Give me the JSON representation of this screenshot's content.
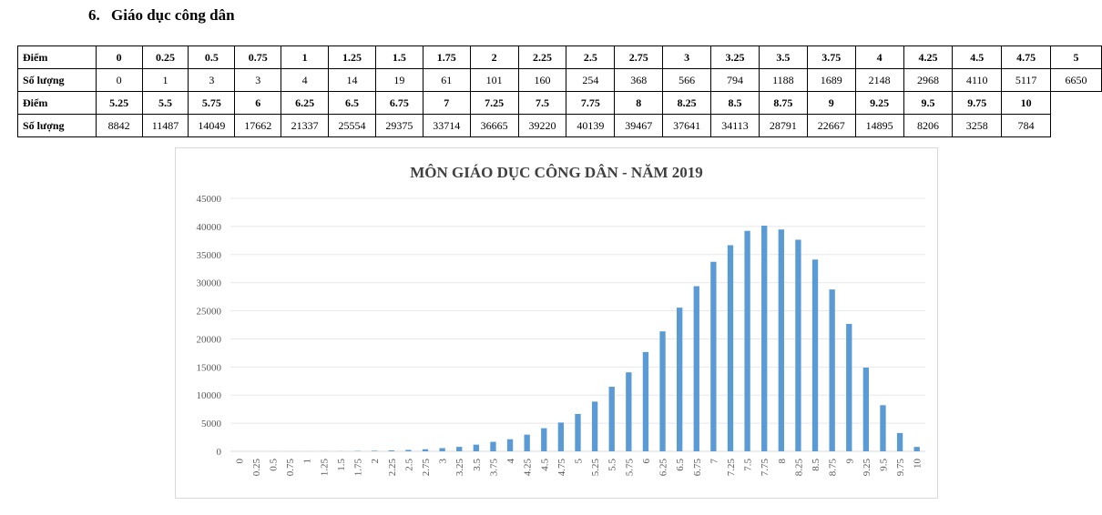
{
  "section": {
    "number": "6.",
    "title": "Giáo dục công dân"
  },
  "table": {
    "score_label": "Điểm",
    "count_label": "Số lượng",
    "rows": [
      {
        "scores": [
          "0",
          "0.25",
          "0.5",
          "0.75",
          "1",
          "1.25",
          "1.5",
          "1.75",
          "2",
          "2.25",
          "2.5",
          "2.75",
          "3",
          "3.25",
          "3.5",
          "3.75",
          "4",
          "4.25",
          "4.5",
          "4.75",
          "5"
        ],
        "counts": [
          "0",
          "1",
          "3",
          "3",
          "4",
          "14",
          "19",
          "61",
          "101",
          "160",
          "254",
          "368",
          "566",
          "794",
          "1188",
          "1689",
          "2148",
          "2968",
          "4110",
          "5117",
          "6650"
        ]
      },
      {
        "scores": [
          "5.25",
          "5.5",
          "5.75",
          "6",
          "6.25",
          "6.5",
          "6.75",
          "7",
          "7.25",
          "7.5",
          "7.75",
          "8",
          "8.25",
          "8.5",
          "8.75",
          "9",
          "9.25",
          "9.5",
          "9.75",
          "10"
        ],
        "counts": [
          "8842",
          "11487",
          "14049",
          "17662",
          "21337",
          "25554",
          "29375",
          "33714",
          "36665",
          "39220",
          "40139",
          "39467",
          "37641",
          "34113",
          "28791",
          "22667",
          "14895",
          "8206",
          "3258",
          "784"
        ]
      }
    ]
  },
  "chart_data": {
    "type": "bar",
    "title": "MÔN GIÁO DỤC CÔNG DÂN - NĂM 2019",
    "xlabel": "",
    "ylabel": "",
    "ylim": [
      0,
      45000
    ],
    "yticks": [
      0,
      5000,
      10000,
      15000,
      20000,
      25000,
      30000,
      35000,
      40000,
      45000
    ],
    "grid": true,
    "bar_color": "#5b9bd5",
    "categories": [
      "0",
      "0.25",
      "0.5",
      "0.75",
      "1",
      "1.25",
      "1.5",
      "1.75",
      "2",
      "2.25",
      "2.5",
      "2.75",
      "3",
      "3.25",
      "3.5",
      "3.75",
      "4",
      "4.25",
      "4.5",
      "4.75",
      "5",
      "5.25",
      "5.5",
      "5.75",
      "6",
      "6.25",
      "6.5",
      "6.75",
      "7",
      "7.25",
      "7.5",
      "7.75",
      "8",
      "8.25",
      "8.5",
      "8.75",
      "9",
      "9.25",
      "9.5",
      "9.75",
      "10"
    ],
    "values": [
      0,
      1,
      3,
      3,
      4,
      14,
      19,
      61,
      101,
      160,
      254,
      368,
      566,
      794,
      1188,
      1689,
      2148,
      2968,
      4110,
      5117,
      6650,
      8842,
      11487,
      14049,
      17662,
      21337,
      25554,
      29375,
      33714,
      36665,
      39220,
      40139,
      39467,
      37641,
      34113,
      28791,
      22667,
      14895,
      8206,
      3258,
      784
    ]
  }
}
